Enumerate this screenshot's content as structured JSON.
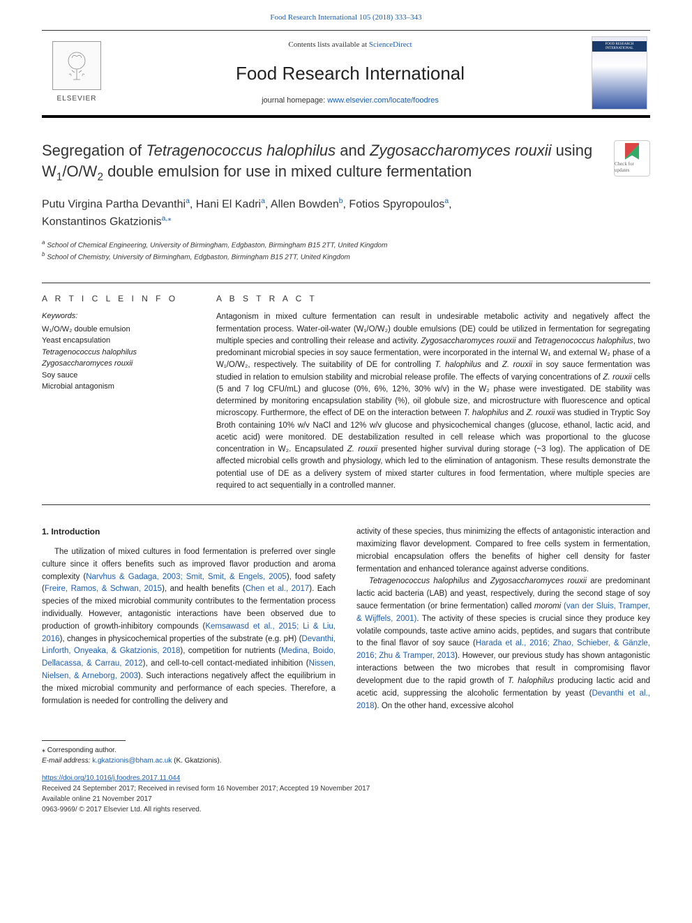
{
  "top_link": "Food Research International 105 (2018) 333–343",
  "header": {
    "contents_prefix": "Contents lists available at ",
    "contents_link": "ScienceDirect",
    "journal_name": "Food Research International",
    "homepage_prefix": "journal homepage: ",
    "homepage_url": "www.elsevier.com/locate/foodres",
    "elsevier_label": "ELSEVIER",
    "cover_title": "FOOD RESEARCH INTERNATIONAL"
  },
  "article": {
    "title_pre": "Segregation of ",
    "title_sp1": "Tetragenococcus halophilus",
    "title_mid1": " and ",
    "title_sp2": "Zygosaccharomyces rouxii",
    "title_mid2": " using W",
    "title_sub1": "1",
    "title_mid3": "/O/W",
    "title_sub2": "2",
    "title_end": " double emulsion for use in mixed culture fermentation",
    "check_updates": "Check for updates"
  },
  "authors": {
    "a1": "Putu Virgina Partha Devanthi",
    "a1_sup": "a",
    "a2": "Hani El Kadri",
    "a2_sup": "a",
    "a3": "Allen Bowden",
    "a3_sup": "b",
    "a4": "Fotios Spyropoulos",
    "a4_sup": "a",
    "a5": "Konstantinos Gkatzionis",
    "a5_sup": "a,",
    "a5_star": "⁎"
  },
  "affiliations": {
    "a_sup": "a",
    "a_text": " School of Chemical Engineering, University of Birmingham, Edgbaston, Birmingham B15 2TT, United Kingdom",
    "b_sup": "b",
    "b_text": " School of Chemistry, University of Birmingham, Edgbaston, Birmingham B15 2TT, United Kingdom"
  },
  "info": {
    "head": "A R T I C L E   I N F O",
    "kw_label": "Keywords:",
    "kw": [
      "W₁/O/W₂ double emulsion",
      "Yeast encapsulation",
      "Tetragenococcus halophilus",
      "Zygosaccharomyces rouxii",
      "Soy sauce",
      "Microbial antagonism"
    ]
  },
  "abstract": {
    "head": "A B S T R A C T",
    "text_parts": [
      "Antagonism in mixed culture fermentation can result in undesirable metabolic activity and negatively affect the fermentation process. Water-oil-water (W₁/O/W₂) double emulsions (DE) could be utilized in fermentation for segregating multiple species and controlling their release and activity. ",
      "Zygosaccharomyces rouxii",
      " and ",
      "Tetragenococcus halophilus",
      ", two predominant microbial species in soy sauce fermentation, were incorporated in the internal W₁ and external W₂ phase of a W₁/O/W₂, respectively. The suitability of DE for controlling ",
      "T. halophilus",
      " and ",
      "Z. rouxii",
      " in soy sauce fermentation was studied in relation to emulsion stability and microbial release profile. The effects of varying concentrations of ",
      "Z. rouxii",
      " cells (5 and 7 log CFU/mL) and glucose (0%, 6%, 12%, 30% w/v) in the W₂ phase were investigated. DE stability was determined by monitoring encapsulation stability (%), oil globule size, and microstructure with fluorescence and optical microscopy. Furthermore, the effect of DE on the interaction between ",
      "T. halophilus",
      " and ",
      "Z. rouxii",
      " was studied in Tryptic Soy Broth containing 10% w/v NaCl and 12% w/v glucose and physicochemical changes (glucose, ethanol, lactic acid, and acetic acid) were monitored. DE destabilization resulted in cell release which was proportional to the glucose concentration in W₂. Encapsulated ",
      "Z. rouxii",
      " presented higher survival during storage (~3 log). The application of DE affected microbial cells growth and physiology, which led to the elimination of antagonism. These results demonstrate the potential use of DE as a delivery system of mixed starter cultures in food fermentation, where multiple species are required to act sequentially in a controlled manner."
    ]
  },
  "body": {
    "intro_head": "1. Introduction",
    "left_para": "The utilization of mixed cultures in food fermentation is preferred over single culture since it offers benefits such as improved flavor production and aroma complexity (Narvhus & Gadaga, 2003; Smit, Smit, & Engels, 2005), food safety (Freire, Ramos, & Schwan, 2015), and health benefits (Chen et al., 2017). Each species of the mixed microbial community contributes to the fermentation process individually. However, antagonistic interactions have been observed due to production of growth-inhibitory compounds (Kemsawasd et al., 2015; Li & Liu, 2016), changes in physicochemical properties of the substrate (e.g. pH) (Devanthi, Linforth, Onyeaka, & Gkatzionis, 2018), competition for nutrients (Medina, Boido, Dellacassa, & Carrau, 2012), and cell-to-cell contact-mediated inhibition (Nissen, Nielsen, & Arneborg, 2003). Such interactions negatively affect the equilibrium in the mixed microbial community and performance of each species. Therefore, a formulation is needed for controlling the delivery and",
    "right_para1": "activity of these species, thus minimizing the effects of antagonistic interaction and maximizing flavor development. Compared to free cells system in fermentation, microbial encapsulation offers the benefits of higher cell density for faster fermentation and enhanced tolerance against adverse conditions.",
    "right_para2_pre": "Tetragenococcus halophilus",
    "right_para2_mid1": " and ",
    "right_para2_sp": "Zygosaccharomyces rouxii",
    "right_para2_post": " are predominant lactic acid bacteria (LAB) and yeast, respectively, during the second stage of soy sauce fermentation (or brine fermentation) called ",
    "right_para2_moromi": "moromi",
    "right_para2_cite1": " (van der Sluis, Tramper, & Wijffels, 2001)",
    "right_para2_tail": ". The activity of these species is crucial since they produce key volatile compounds, taste active amino acids, peptides, and sugars that contribute to the final flavor of soy sauce (Harada et al., 2016; Zhao, Schieber, & Gänzle, 2016; Zhu & Tramper, 2013). However, our previous study has shown antagonistic interactions between the two microbes that result in compromising flavor development due to the rapid growth of ",
    "right_para2_thal": "T. halophilus",
    "right_para2_tail2": " producing lactic acid and acetic acid, suppressing the alcoholic fermentation by yeast (Devanthi et al., 2018). On the other hand, excessive alcohol"
  },
  "footer": {
    "corr_star": "⁎",
    "corr_text": " Corresponding author.",
    "email_label": "E-mail address: ",
    "email": "k.gkatzionis@bham.ac.uk",
    "email_name": " (K. Gkatzionis).",
    "doi": "https://doi.org/10.1016/j.foodres.2017.11.044",
    "received": "Received 24 September 2017; Received in revised form 16 November 2017; Accepted 19 November 2017",
    "available": "Available online 21 November 2017",
    "issn": "0963-9969/ © 2017 Elsevier Ltd. All rights reserved."
  },
  "colors": {
    "link": "#1a5db5",
    "text": "#222222",
    "border": "#333333"
  }
}
